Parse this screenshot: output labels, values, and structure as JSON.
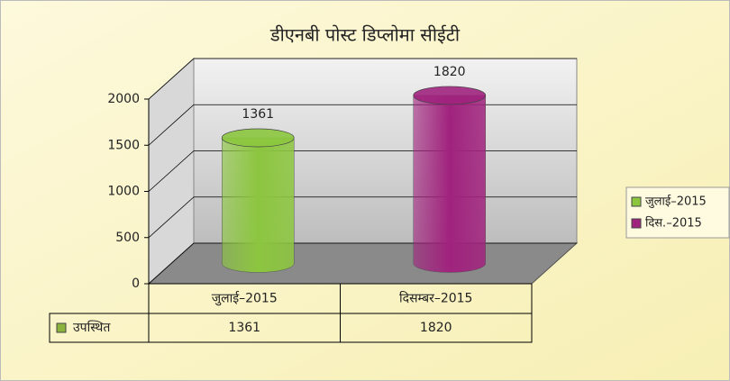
{
  "chart_data": {
    "type": "bar3d",
    "title": "डीएनबी पोस्ट डिप्लोमा सीईटी",
    "categories": [
      "जुलाई–2015",
      "दिसम्बर–2015"
    ],
    "series": [
      {
        "name": "उपस्थित",
        "color": "#8cb43c",
        "values": [
          1361,
          1820
        ]
      }
    ],
    "bar_colors": [
      "#8cc63f",
      "#a0237d"
    ],
    "legend": [
      {
        "name": "जुलाई–2015",
        "color": "#8cc63f"
      },
      {
        "name": "दिस.–2015",
        "color": "#a0237d"
      }
    ],
    "ylim": [
      0,
      2000
    ],
    "yticks": [
      0,
      500,
      1000,
      1500,
      2000
    ],
    "grid": true
  }
}
